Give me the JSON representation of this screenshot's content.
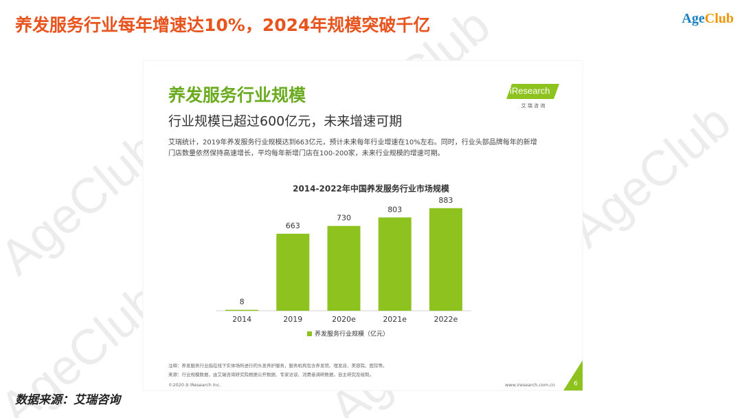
{
  "header": {
    "title": "养发服务行业每年增速达10%，2024年规模突破千亿",
    "logo": [
      "Age",
      "Club"
    ]
  },
  "slide": {
    "title": "养发服务行业规模",
    "subtitle": "行业规模已超过600亿元，未来增速可期",
    "body": [
      "艾瑞统计，2019年养发服务行业规模达到663亿元，预计未来每年行业增速在10%左右。同时，行业头部品牌每年的新增",
      "门店数量依然保持高速增长，平均每年新增门店在100-200家，未来行业规模的增速可期。"
    ],
    "brand": "iResearch",
    "brand_cn": "艾 瑞 咨 询",
    "notes": [
      "注释：养发服务行业指在线下实体场所进行的头发养护服务，服务机构包含养发馆、理发店、美容院、医院等。",
      "来源：行业规模数据，由艾瑞咨询研究院根据公开数据、专家访谈、消费者调研数据，自主研究及绘制。"
    ],
    "footer_left": "©2020.9 iResearch Inc.",
    "footer_right": "www.iresearch.com.cn",
    "page": "6"
  },
  "chart_data": {
    "type": "bar",
    "title": "2014-2022年中国养发服务行业市场规模",
    "categories": [
      "2014",
      "2019",
      "2020e",
      "2021e",
      "2022e"
    ],
    "series": [
      {
        "name": "养发服务行业规模（亿元）",
        "color": "#8dc21f",
        "values": [
          8,
          663,
          730,
          803,
          883
        ]
      }
    ],
    "ylim": [
      0,
      1000
    ]
  },
  "source": "数据来源：艾瑞咨询"
}
